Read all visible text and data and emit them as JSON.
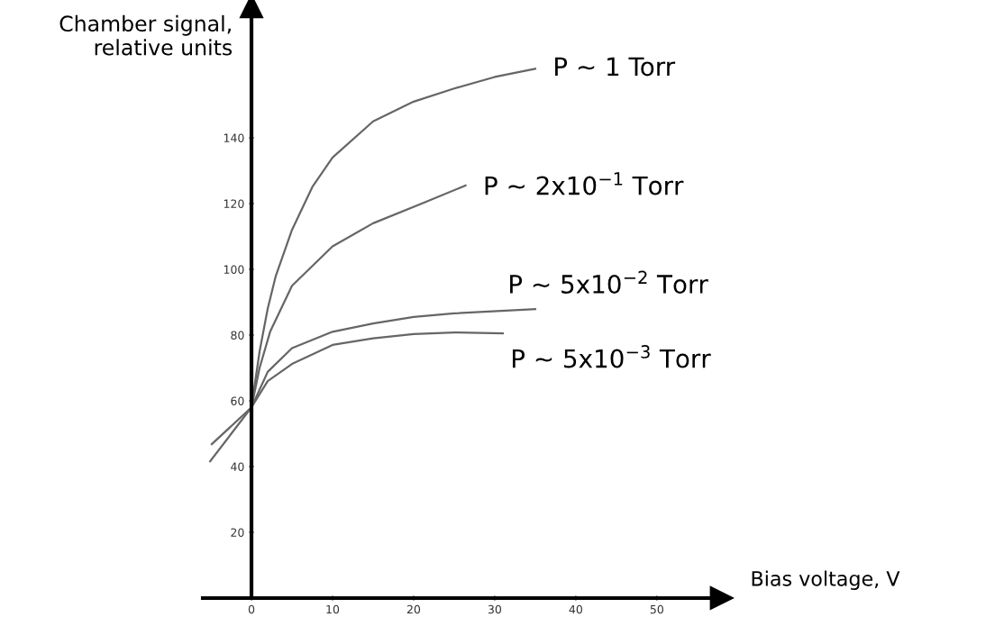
{
  "chart_data": {
    "type": "line",
    "xlabel": "Bias voltage, V",
    "ylabel": "Chamber signal,\nrelative units",
    "xlim": [
      -6,
      58
    ],
    "ylim": [
      0,
      180
    ],
    "xticks": [
      0,
      10,
      20,
      30,
      40,
      50
    ],
    "yticks": [
      20,
      40,
      60,
      80,
      100,
      120,
      140
    ],
    "grid": false,
    "legend": false,
    "marker": "none",
    "line_style": "solid",
    "series": [
      {
        "name": "P ~ 1 Torr",
        "color": "#666666",
        "x": [
          0,
          1,
          2,
          3,
          5,
          7.5,
          10,
          15,
          20,
          25,
          30,
          35
        ],
        "values": [
          58,
          75,
          88,
          98,
          112,
          125,
          134,
          145,
          151,
          155,
          158.5,
          161
        ]
      },
      {
        "name": "P ~ 2x10$^{−1}$ Torr",
        "color": "#666666",
        "x": [
          0,
          1,
          2.3,
          5,
          10,
          15,
          21,
          26.4
        ],
        "values": [
          58,
          70,
          81,
          95,
          107,
          114,
          120,
          125.5
        ]
      },
      {
        "name": "P ~ 5x10$^{−2}$ Torr",
        "color": "#666666",
        "x": [
          -4.9,
          0,
          2,
          5,
          10,
          15,
          20,
          25,
          35
        ],
        "values": [
          46.8,
          58,
          68.8,
          76,
          81,
          83.5,
          85.5,
          86.6,
          87.9
        ]
      },
      {
        "name": "P ~ 5x10$^{−3}$ Torr",
        "color": "#666666",
        "x": [
          -5.1,
          0,
          2,
          5,
          10,
          15,
          20,
          25,
          31
        ],
        "values": [
          41.6,
          58,
          66,
          71.2,
          77,
          79,
          80.3,
          80.8,
          80.5
        ]
      }
    ]
  }
}
